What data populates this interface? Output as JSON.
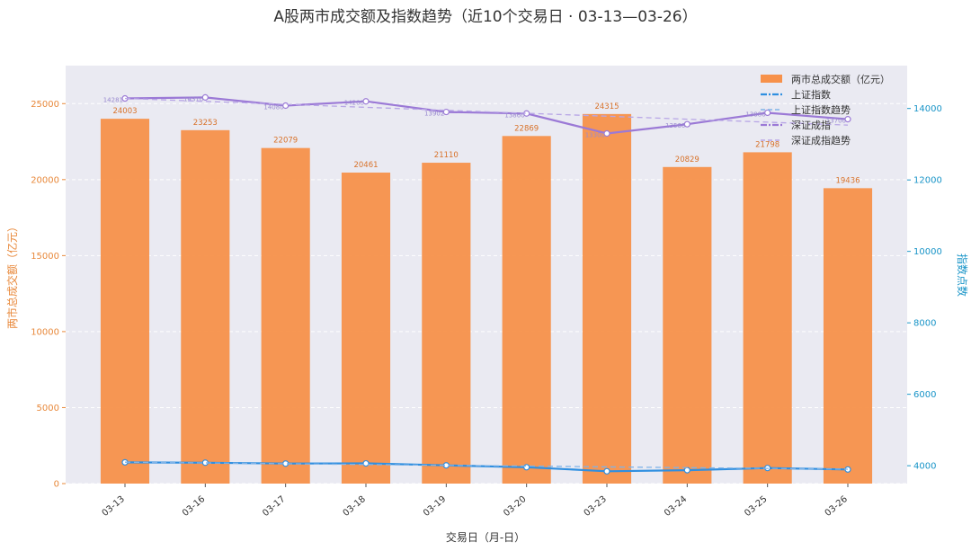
{
  "chart_data": {
    "type": "bar",
    "title": "A股两市成交额及指数趋势（近10个交易日 · 03-13—03-26）",
    "xlabel": "交易日（月-日）",
    "ylabel": "两市总成交额（亿元）",
    "y2label": "指数点数",
    "categories": [
      "03-13",
      "03-16",
      "03-17",
      "03-18",
      "03-19",
      "03-20",
      "03-23",
      "03-24",
      "03-25",
      "03-26"
    ],
    "ylim": [
      0,
      27500
    ],
    "y2lim": [
      3500,
      15200
    ],
    "yticks": [
      "0",
      "5000",
      "10000",
      "15000",
      "20000",
      "25000"
    ],
    "y2ticks": [
      "4000",
      "6000",
      "8000",
      "10000",
      "12000",
      "14000"
    ],
    "grid": true,
    "legend_position": "top-right",
    "series": [
      {
        "name": "两市总成交额（亿元）",
        "type": "bar",
        "axis": "left",
        "color": "#f7914a",
        "values": [
          24003,
          23253,
          22079,
          20461,
          21110,
          22869,
          24315,
          20829,
          21798,
          19436
        ],
        "labels": [
          "24003",
          "23253",
          "22079",
          "20461",
          "21110",
          "22869",
          "24315",
          "20829",
          "21798",
          "19436"
        ]
      },
      {
        "name": "上证指数",
        "type": "line",
        "axis": "right",
        "color": "#2f8fe0",
        "values": [
          4095,
          4085,
          4060,
          4065,
          4010,
          3958,
          3845,
          3875,
          3935,
          3895
        ]
      },
      {
        "name": "上证指数趋势",
        "type": "trend",
        "axis": "right",
        "color": "#7fb3e8",
        "values": [
          4100,
          4078,
          4056,
          4034,
          4012,
          3990,
          3968,
          3946,
          3924,
          3902
        ]
      },
      {
        "name": "深证成指",
        "type": "line",
        "axis": "right",
        "color": "#9b79d6",
        "values": [
          14281,
          14310,
          14080,
          14200,
          13902,
          13860,
          13300,
          13560,
          13880,
          13700
        ],
        "labels": [
          "14281",
          "14310",
          "14080",
          "14200",
          "13902",
          "13860",
          "13300",
          "13560",
          "13880",
          "13700"
        ]
      },
      {
        "name": "深证成指趋势",
        "type": "trend",
        "axis": "right",
        "color": "#b8a6e6",
        "values": [
          14281,
          14198,
          14115,
          14032,
          13949,
          13866,
          13783,
          13700,
          13617,
          13534
        ]
      }
    ],
    "colors": {
      "bar": "#f7914a",
      "left_axis": "#e8883a",
      "right_axis": "#1a95c8",
      "plot_bg": "#eaeaf2"
    }
  }
}
